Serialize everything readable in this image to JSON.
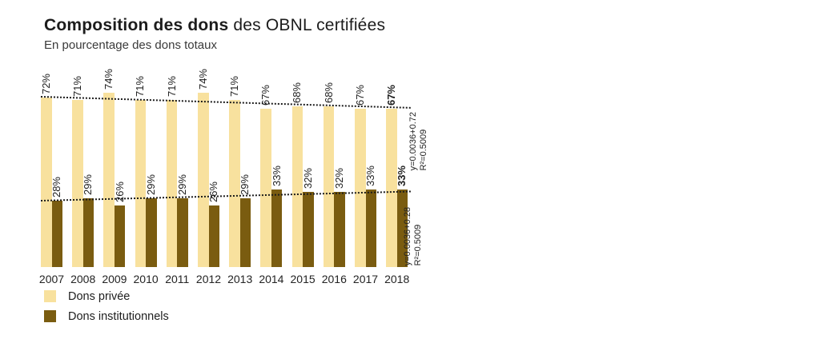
{
  "header": {
    "title_bold": "Composition des dons",
    "title_rest": " des OBNL certifiées",
    "subtitle": "En pourcentage des dons totaux"
  },
  "chart_data": {
    "type": "bar",
    "categories": [
      "2007",
      "2008",
      "2009",
      "2010",
      "2011",
      "2012",
      "2013",
      "2014",
      "2015",
      "2016",
      "2017",
      "2018"
    ],
    "series": [
      {
        "name": "Dons privée",
        "color": "#F8E19E",
        "values": [
          72,
          71,
          74,
          71,
          71,
          74,
          71,
          67,
          68,
          68,
          67,
          67
        ]
      },
      {
        "name": "Dons institutionnels",
        "color": "#7A5C10",
        "values": [
          28,
          29,
          26,
          29,
          29,
          26,
          29,
          33,
          32,
          32,
          33,
          33
        ]
      },
      {
        "name": "_note",
        "color": "",
        "values": []
      }
    ],
    "value_suffix": "%",
    "ylim": [
      0,
      100
    ],
    "grid": false,
    "legend_position": "bottom-left",
    "last_category_bold": true,
    "trendlines": [
      {
        "equation": "y=0.0036+0.72",
        "r2": "R²=0.5009",
        "start_pct": 72.4,
        "end_pct": 67.7,
        "style": "dotted"
      },
      {
        "equation": "y=0.0036+0.28",
        "r2": "R²=0.5009",
        "start_pct": 28.4,
        "end_pct": 32.3,
        "style": "dotted"
      }
    ]
  },
  "legend": {
    "items": [
      {
        "label": "Dons privée",
        "color": "#F8E19E"
      },
      {
        "label": "Dons institutionnels",
        "color": "#7A5C10"
      }
    ]
  }
}
